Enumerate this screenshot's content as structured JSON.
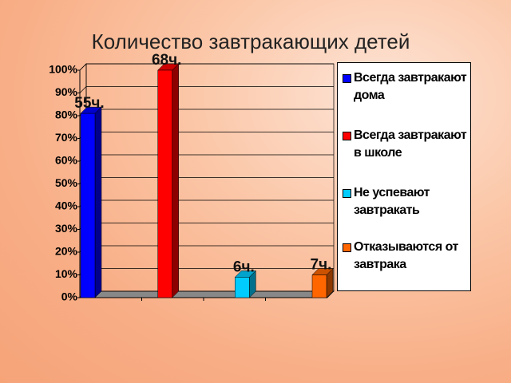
{
  "chart_data": {
    "type": "bar3d",
    "title": "Количество завтракающих детей",
    "series": [
      {
        "name": "Всегда завтракают дома",
        "color": "#0000ff",
        "values": [
          81
        ],
        "data_label": "55ч."
      },
      {
        "name": "Всегда завтракают в школе",
        "color": "#ff0000",
        "values": [
          100
        ],
        "data_label": "68ч."
      },
      {
        "name": "Не успевают завтракать",
        "color": "#00ccff",
        "values": [
          9
        ],
        "data_label": "6ч."
      },
      {
        "name": "Отказываются от завтрака",
        "color": "#ff6600",
        "values": [
          10
        ],
        "data_label": "7ч."
      }
    ],
    "ylim": [
      0,
      100
    ],
    "yticks": [
      {
        "value": 0,
        "label": "0%"
      },
      {
        "value": 10,
        "label": "10%"
      },
      {
        "value": 20,
        "label": "20%"
      },
      {
        "value": 30,
        "label": "30%"
      },
      {
        "value": 40,
        "label": "40%"
      },
      {
        "value": 50,
        "label": "50%"
      },
      {
        "value": 60,
        "label": "60%"
      },
      {
        "value": 70,
        "label": "70%"
      },
      {
        "value": 80,
        "label": "80%"
      },
      {
        "value": 90,
        "label": "90%"
      },
      {
        "value": 100,
        "label": "100%"
      }
    ],
    "grid": true,
    "legend": "right"
  }
}
